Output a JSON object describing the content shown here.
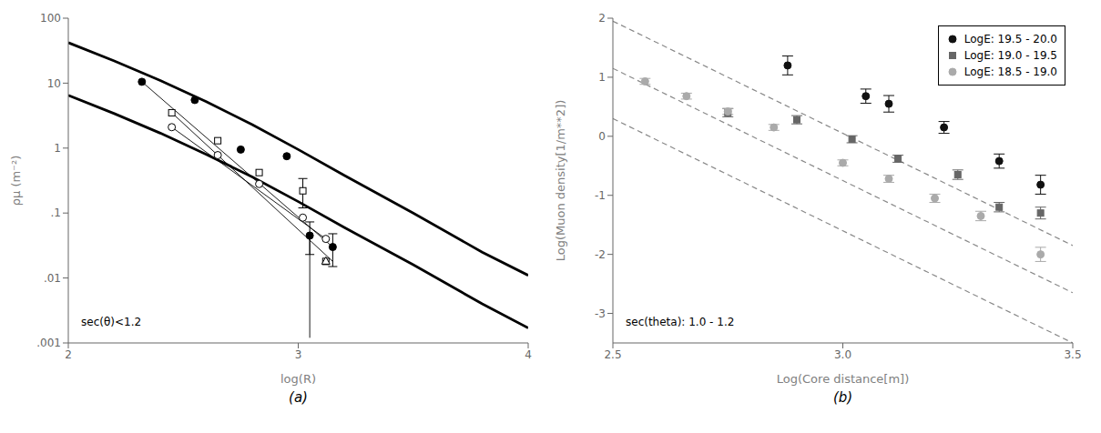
{
  "chart_data": [
    {
      "type": "line",
      "title": "(a)",
      "xlabel": "log(R)",
      "ylabel": "ρμ (m⁻²)",
      "annotation": "sec(θ)<1.2",
      "log": "y",
      "grid": false,
      "xlim": [
        2,
        4
      ],
      "ylim": [
        0.001,
        100
      ],
      "xticks": [
        2,
        3,
        4
      ],
      "yticks": [
        {
          "value": 0.001,
          "label": ".001"
        },
        {
          "value": 0.01,
          "label": ".01"
        },
        {
          "value": 0.1,
          "label": ".1"
        },
        1,
        10,
        100
      ],
      "series": [
        {
          "type": "line",
          "line_style": "bold",
          "color": "#000000",
          "x": [
            2.0,
            2.2,
            2.4,
            2.6,
            2.8,
            3.0,
            3.2,
            3.5,
            3.8,
            4.0
          ],
          "values": [
            42.0,
            22.0,
            11.0,
            5.2,
            2.3,
            0.95,
            0.38,
            0.1,
            0.025,
            0.011
          ]
        },
        {
          "type": "line",
          "line_style": "bold",
          "color": "#000000",
          "x": [
            2.0,
            2.2,
            2.4,
            2.6,
            2.8,
            3.0,
            3.2,
            3.5,
            3.8,
            4.0
          ],
          "values": [
            6.5,
            3.4,
            1.7,
            0.8,
            0.36,
            0.15,
            0.06,
            0.016,
            0.004,
            0.0017
          ]
        },
        {
          "type": "line",
          "line_style": "thin",
          "color": "#000000",
          "x": [
            2.32,
            3.15
          ],
          "values": [
            10.5,
            0.03
          ]
        },
        {
          "type": "line",
          "line_style": "thin",
          "color": "#000000",
          "x": [
            2.45,
            3.15
          ],
          "values": [
            3.5,
            0.018
          ]
        },
        {
          "type": "line",
          "line_style": "thin",
          "color": "#000000",
          "x": [
            2.45,
            3.12
          ],
          "values": [
            2.1,
            0.04
          ]
        },
        {
          "type": "line",
          "line_style": "thin",
          "color": "#000000",
          "x": [
            3.05,
            3.05
          ],
          "values": [
            0.045,
            0.0012
          ]
        },
        {
          "type": "scatter",
          "marker": "circle_open",
          "color": "#000000",
          "x": [
            2.45,
            2.65,
            2.83,
            3.02,
            3.12
          ],
          "values": [
            2.1,
            0.78,
            0.28,
            0.085,
            0.04
          ]
        },
        {
          "type": "scatter",
          "marker": "square_open",
          "color": "#000000",
          "x": [
            2.45,
            2.65,
            2.83,
            3.02,
            3.12
          ],
          "values": [
            3.5,
            1.3,
            0.42,
            0.22,
            0.018
          ]
        },
        {
          "type": "scatter",
          "marker": "circle",
          "color": "#000000",
          "x": [
            2.32,
            2.55,
            2.75,
            2.95,
            3.05,
            3.15
          ],
          "values": [
            10.5,
            5.5,
            0.95,
            0.75,
            0.045,
            0.03
          ]
        },
        {
          "type": "scatter",
          "marker": "triangle_open",
          "color": "#000000",
          "x": [
            3.12
          ],
          "values": [
            0.018
          ]
        },
        {
          "type": "errorbar",
          "color": "#000000",
          "x": [
            3.02
          ],
          "values": [
            0.22
          ],
          "error_low": [
            0.1
          ],
          "error_high": [
            0.12
          ]
        },
        {
          "type": "errorbar",
          "color": "#000000",
          "x": [
            3.05,
            3.15
          ],
          "values": [
            0.045,
            0.03
          ],
          "error_low": [
            0.022,
            0.015
          ],
          "error_high": [
            0.028,
            0.018
          ]
        }
      ]
    },
    {
      "type": "scatter",
      "title": "(b)",
      "xlabel": "Log(Core distance[m])",
      "ylabel": "Log(Muon density[1/m**2])",
      "annotation": "sec(theta): 1.0 - 1.2",
      "grid": false,
      "legend": "upper right",
      "xlim": [
        2.5,
        3.5
      ],
      "ylim": [
        -3.5,
        2.0
      ],
      "xticks": [
        2.5,
        {
          "value": 3.0,
          "label": "3.0"
        },
        3.5
      ],
      "yticks": [
        -3,
        -2,
        -1,
        0,
        1,
        2
      ],
      "series": [
        {
          "type": "line",
          "line_style": "dashed",
          "color": "#888888",
          "x": [
            2.5,
            3.5
          ],
          "values": [
            1.95,
            -1.85
          ]
        },
        {
          "type": "line",
          "line_style": "dashed",
          "color": "#888888",
          "x": [
            2.5,
            3.5
          ],
          "values": [
            1.15,
            -2.65
          ]
        },
        {
          "type": "line",
          "line_style": "dashed",
          "color": "#888888",
          "x": [
            2.5,
            3.5
          ],
          "values": [
            0.3,
            -3.5
          ]
        },
        {
          "type": "scatter",
          "name": "LogE: 19.5 - 20.0",
          "marker": "circle",
          "color": "#111111",
          "x": [
            2.88,
            3.05,
            3.1,
            3.22,
            3.34,
            3.43
          ],
          "values": [
            1.2,
            0.68,
            0.55,
            0.15,
            -0.42,
            -0.82
          ],
          "errors": [
            0.16,
            0.12,
            0.14,
            0.1,
            0.12,
            0.16
          ]
        },
        {
          "type": "scatter",
          "name": "LogE: 19.0 - 19.5",
          "marker": "square",
          "color": "#666666",
          "x": [
            2.75,
            2.9,
            3.02,
            3.12,
            3.25,
            3.34,
            3.43
          ],
          "values": [
            0.4,
            0.28,
            -0.05,
            -0.38,
            -0.65,
            -1.2,
            -1.3
          ],
          "errors": [
            0.07,
            0.07,
            0.06,
            0.06,
            0.08,
            0.08,
            0.1
          ]
        },
        {
          "type": "scatter",
          "name": "LogE: 18.5 - 19.0",
          "marker": "circle",
          "color": "#aaaaaa",
          "x": [
            2.57,
            2.66,
            2.75,
            2.85,
            3.0,
            3.1,
            3.2,
            3.3,
            3.43
          ],
          "values": [
            0.93,
            0.68,
            0.42,
            0.15,
            -0.45,
            -0.72,
            -1.05,
            -1.35,
            -2.0
          ],
          "errors": [
            0.05,
            0.05,
            0.05,
            0.05,
            0.05,
            0.06,
            0.07,
            0.08,
            0.12
          ]
        }
      ]
    }
  ]
}
